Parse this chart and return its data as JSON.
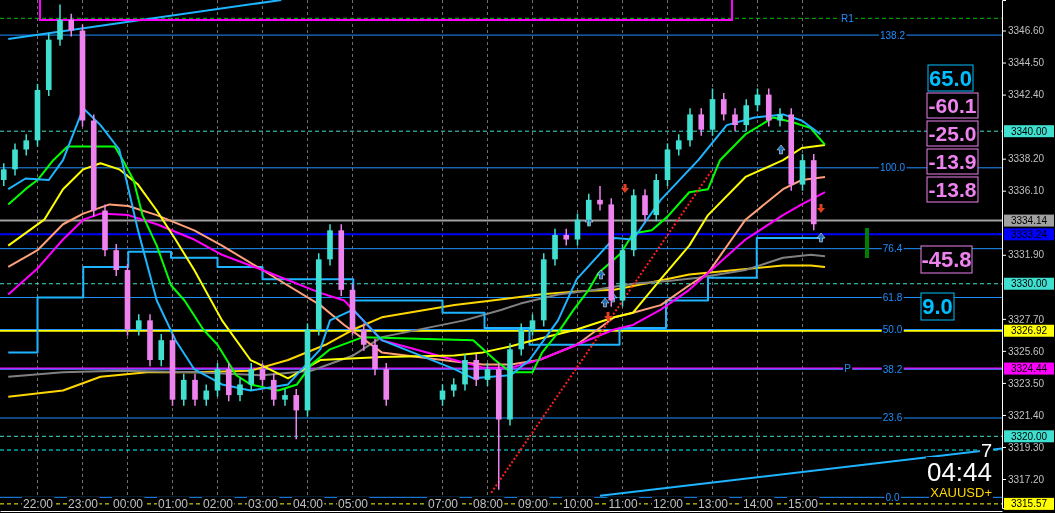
{
  "chart_data": {
    "type": "candlestick",
    "x": [
      "2000-01-01T21:15",
      "2000-01-01T21:30",
      "2000-01-01T21:45",
      "2000-01-01T22:00",
      "2000-01-01T22:15",
      "2000-01-01T22:30",
      "2000-01-01T22:45",
      "2000-01-01T23:00",
      "2000-01-01T23:15",
      "2000-01-01T23:30",
      "2000-01-01T23:45",
      "2000-01-02T00:00",
      "2000-01-02T00:15",
      "2000-01-02T00:30",
      "2000-01-02T00:45",
      "2000-01-02T01:00",
      "2000-01-02T01:15",
      "2000-01-02T01:30",
      "2000-01-02T01:45",
      "2000-01-02T02:00",
      "2000-01-02T02:15",
      "2000-01-02T02:30",
      "2000-01-02T02:45",
      "2000-01-02T03:00",
      "2000-01-02T03:15",
      "2000-01-02T03:30",
      "2000-01-02T03:45",
      "2000-01-02T04:00",
      "2000-01-02T04:15",
      "2000-01-02T04:30",
      "2000-01-02T04:45",
      "2000-01-02T05:00",
      "2000-01-02T05:15",
      "2000-01-02T05:30",
      "2000-01-02T05:45",
      "2000-01-02T07:00",
      "2000-01-02T07:15",
      "2000-01-02T07:30",
      "2000-01-02T07:45",
      "2000-01-02T08:00",
      "2000-01-02T08:15",
      "2000-01-02T08:30",
      "2000-01-02T08:45",
      "2000-01-02T09:00",
      "2000-01-02T09:15",
      "2000-01-02T09:30",
      "2000-01-02T09:45",
      "2000-01-02T10:00",
      "2000-01-02T10:15",
      "2000-01-02T10:30",
      "2000-01-02T10:45",
      "2000-01-02T11:00",
      "2000-01-02T11:15",
      "2000-01-02T11:30",
      "2000-01-02T11:45",
      "2000-01-02T12:00",
      "2000-01-02T12:15",
      "2000-01-02T12:30",
      "2000-01-02T12:45",
      "2000-01-02T13:00",
      "2000-01-02T13:15",
      "2000-01-02T13:30",
      "2000-01-02T13:45",
      "2000-01-02T14:00",
      "2000-01-02T14:15",
      "2000-01-02T14:30",
      "2000-01-02T14:45",
      "2000-01-02T15:00",
      "2000-01-02T15:15"
    ],
    "ohlc": [
      [
        3336.8,
        3337.9,
        3336.4,
        3337.5
      ],
      [
        3337.5,
        3339.2,
        3337.1,
        3338.8
      ],
      [
        3338.8,
        3339.8,
        3338.4,
        3339.4
      ],
      [
        3339.4,
        3343.1,
        3339.0,
        3342.7
      ],
      [
        3342.7,
        3346.4,
        3342.3,
        3346.0
      ],
      [
        3346.0,
        3348.3,
        3345.6,
        3347.3
      ],
      [
        3347.3,
        3347.7,
        3346.2,
        3346.6
      ],
      [
        3346.6,
        3347.0,
        3340.3,
        3340.7
      ],
      [
        3340.7,
        3341.1,
        3334.4,
        3334.8
      ],
      [
        3334.8,
        3335.2,
        3331.8,
        3332.2
      ],
      [
        3332.2,
        3332.6,
        3330.5,
        3330.9
      ],
      [
        3330.9,
        3331.3,
        3326.6,
        3327.0
      ],
      [
        3327.0,
        3328.0,
        3326.6,
        3327.6
      ],
      [
        3327.6,
        3328.0,
        3324.6,
        3325.0
      ],
      [
        3325.0,
        3326.7,
        3324.6,
        3326.3
      ],
      [
        3326.3,
        3326.7,
        3322.0,
        3322.4
      ],
      [
        3322.4,
        3324.1,
        3322.0,
        3323.7
      ],
      [
        3323.7,
        3324.1,
        3322.0,
        3322.4
      ],
      [
        3322.4,
        3323.4,
        3322.0,
        3323.0
      ],
      [
        3323.0,
        3324.8,
        3322.6,
        3324.4
      ],
      [
        3324.4,
        3324.8,
        3322.3,
        3322.7
      ],
      [
        3322.7,
        3323.8,
        3322.3,
        3323.4
      ],
      [
        3323.4,
        3324.8,
        3323.0,
        3324.4
      ],
      [
        3324.4,
        3324.8,
        3323.3,
        3323.7
      ],
      [
        3323.7,
        3324.1,
        3322.0,
        3322.4
      ],
      [
        3322.4,
        3323.1,
        3322.0,
        3322.7
      ],
      [
        3322.7,
        3323.1,
        3319.8,
        3321.7
      ],
      [
        3321.7,
        3327.4,
        3321.3,
        3327.0
      ],
      [
        3327.0,
        3332.0,
        3326.6,
        3331.6
      ],
      [
        3331.6,
        3333.9,
        3331.2,
        3333.5
      ],
      [
        3333.5,
        3333.9,
        3329.2,
        3329.6
      ],
      [
        3329.6,
        3330.0,
        3326.6,
        3327.0
      ],
      [
        3327.0,
        3327.4,
        3325.6,
        3326.0
      ],
      [
        3326.0,
        3326.4,
        3324.0,
        3324.4
      ],
      [
        3324.4,
        3324.8,
        3322.0,
        3322.4
      ],
      [
        3322.4,
        3323.4,
        3322.0,
        3323.0
      ],
      [
        3323.0,
        3323.8,
        3322.6,
        3323.4
      ],
      [
        3323.4,
        3325.4,
        3323.0,
        3325.0
      ],
      [
        3325.0,
        3325.4,
        3323.3,
        3323.7
      ],
      [
        3323.7,
        3324.8,
        3323.3,
        3324.4
      ],
      [
        3324.4,
        3324.8,
        3316.5,
        3321.1
      ],
      [
        3321.1,
        3326.1,
        3320.7,
        3325.7
      ],
      [
        3325.7,
        3327.4,
        3325.3,
        3327.0
      ],
      [
        3327.0,
        3328.0,
        3326.6,
        3327.6
      ],
      [
        3327.6,
        3332.0,
        3327.2,
        3331.6
      ],
      [
        3331.6,
        3333.6,
        3331.2,
        3333.2
      ],
      [
        3333.2,
        3333.6,
        3332.5,
        3332.9
      ],
      [
        3332.9,
        3334.6,
        3332.5,
        3334.2
      ],
      [
        3334.2,
        3335.9,
        3333.8,
        3335.5
      ],
      [
        3335.5,
        3336.4,
        3334.8,
        3335.2
      ],
      [
        3335.2,
        3335.6,
        3328.5,
        3328.9
      ],
      [
        3328.9,
        3332.6,
        3328.5,
        3332.2
      ],
      [
        3332.2,
        3336.2,
        3331.8,
        3335.8
      ],
      [
        3335.8,
        3336.2,
        3334.1,
        3334.5
      ],
      [
        3334.5,
        3337.2,
        3334.1,
        3336.8
      ],
      [
        3336.8,
        3339.2,
        3336.4,
        3338.8
      ],
      [
        3338.8,
        3339.8,
        3338.4,
        3339.4
      ],
      [
        3339.4,
        3341.5,
        3339.0,
        3341.1
      ],
      [
        3341.1,
        3341.5,
        3339.7,
        3340.1
      ],
      [
        3340.1,
        3342.8,
        3339.7,
        3342.1
      ],
      [
        3342.1,
        3342.5,
        3340.7,
        3341.1
      ],
      [
        3341.1,
        3341.5,
        3340.0,
        3340.4
      ],
      [
        3340.4,
        3342.1,
        3340.0,
        3341.7
      ],
      [
        3341.7,
        3342.8,
        3341.3,
        3342.4
      ],
      [
        3342.4,
        3342.8,
        3340.3,
        3340.7
      ],
      [
        3340.7,
        3341.5,
        3340.3,
        3341.1
      ],
      [
        3341.1,
        3341.5,
        3336.1,
        3336.5
      ],
      [
        3336.5,
        3338.5,
        3336.1,
        3338.1
      ],
      [
        3338.1,
        3338.5,
        3333.5,
        3333.9
      ]
    ],
    "series": [
      {
        "type": "line",
        "color": "#ffd700",
        "x": [
          "2000-01-01T21:21",
          "2000-01-01T22:34",
          "2000-01-01T23:24",
          "2000-01-02T00:26",
          "2000-01-02T01:29",
          "2000-01-02T02:44",
          "2000-01-02T03:34",
          "2000-01-02T04:24",
          "2000-01-02T05:01",
          "2000-01-02T05:39",
          "2000-01-02T07:16",
          "2000-01-02T08:06",
          "2000-01-02T09:09",
          "2000-01-02T09:59",
          "2000-01-02T10:49",
          "2000-01-02T11:39",
          "2000-01-02T12:29",
          "2000-01-02T13:31",
          "2000-01-02T14:34",
          "2000-01-02T15:11",
          "2000-01-02T15:30"
        ],
        "values": [
          3322.6,
          3323.0,
          3323.9,
          3324.2,
          3324.2,
          3324.3,
          3325.0,
          3326.0,
          3327.0,
          3327.8,
          3328.6,
          3328.9,
          3329.3,
          3329.5,
          3329.6,
          3330.1,
          3330.6,
          3330.9,
          3331.2,
          3331.2,
          3331.1
        ]
      },
      {
        "type": "line",
        "color": "#808080",
        "x": [
          "2000-01-01T21:21",
          "2000-01-01T22:34",
          "2000-01-01T23:49",
          "2000-01-02T01:29",
          "2000-01-02T03:00",
          "2000-01-02T04:05",
          "2000-01-02T05:01",
          "2000-01-02T05:39",
          "2000-01-02T07:29",
          "2000-01-02T08:19",
          "2000-01-02T08:44",
          "2000-01-02T09:34",
          "2000-01-02T10:24",
          "2000-01-02T11:14",
          "2000-01-02T12:04",
          "2000-01-02T12:41",
          "2000-01-02T13:44",
          "2000-01-02T14:34",
          "2000-01-02T15:11",
          "2000-01-02T15:30"
        ],
        "values": [
          3323.9,
          3324.2,
          3324.3,
          3324.2,
          3324.0,
          3324.3,
          3325.3,
          3326.5,
          3327.6,
          3328.3,
          3328.7,
          3329.3,
          3329.6,
          3330.0,
          3330.2,
          3330.4,
          3330.9,
          3331.7,
          3331.9,
          3331.8
        ]
      },
      {
        "type": "step",
        "color": "#1eb4ff",
        "x": [
          "2000-01-01T21:21",
          "2000-01-01T22:00",
          "2000-01-01T23:01",
          "2000-01-02T00:01",
          "2000-01-02T00:58",
          "2000-01-02T02:00",
          "2000-01-02T03:00",
          "2000-01-02T05:01",
          "2000-01-02T07:00",
          "2000-01-02T07:56",
          "2000-01-02T08:56",
          "2000-01-02T10:56",
          "2000-01-02T11:58",
          "2000-01-02T12:54",
          "2000-01-02T13:59",
          "2000-01-02T15:28"
        ],
        "values": [
          3325.5,
          3329.1,
          3331.1,
          3332.1,
          3331.7,
          3331.1,
          3330.3,
          3328.9,
          3328.1,
          3327.1,
          3326.0,
          3327.1,
          3328.9,
          3330.4,
          3333.0,
          3333.0
        ]
      },
      {
        "type": "line",
        "color": "#ffa07a",
        "x": [
          "2000-01-01T21:21",
          "2000-01-01T22:00",
          "2000-01-01T22:34",
          "2000-01-01T23:01",
          "2000-01-01T23:36",
          "2000-01-02T00:01",
          "2000-01-02T00:39",
          "2000-01-02T01:29",
          "2000-01-02T02:06",
          "2000-01-02T03:00",
          "2000-01-02T04:17",
          "2000-01-02T04:49",
          "2000-01-02T05:39",
          "2000-01-02T07:16",
          "2000-01-02T07:54",
          "2000-01-02T08:31",
          "2000-01-02T09:09",
          "2000-01-02T09:59",
          "2000-01-02T10:49",
          "2000-01-02T11:14",
          "2000-01-02T11:51",
          "2000-01-02T12:29",
          "2000-01-02T12:54",
          "2000-01-02T13:44",
          "2000-01-02T14:34",
          "2000-01-02T14:59",
          "2000-01-02T15:30"
        ],
        "values": [
          3331.1,
          3332.2,
          3333.9,
          3334.6,
          3335.2,
          3335.1,
          3334.5,
          3333.5,
          3332.5,
          3330.9,
          3328.6,
          3327.3,
          3325.5,
          3324.9,
          3324.7,
          3324.7,
          3325.0,
          3326.0,
          3327.8,
          3328.1,
          3328.6,
          3329.9,
          3330.7,
          3334.2,
          3336.2,
          3336.8,
          3337.0
        ]
      },
      {
        "type": "line",
        "color": "#ff00ff",
        "x": [
          "2000-01-01T21:21",
          "2000-01-01T22:00",
          "2000-01-01T22:34",
          "2000-01-01T23:01",
          "2000-01-01T23:24",
          "2000-01-02T00:01",
          "2000-01-02T00:39",
          "2000-01-02T01:29",
          "2000-01-02T02:06",
          "2000-01-02T03:00",
          "2000-01-02T04:17",
          "2000-01-02T04:49",
          "2000-01-02T05:39",
          "2000-01-02T07:16",
          "2000-01-02T07:54",
          "2000-01-02T08:31",
          "2000-01-02T09:09",
          "2000-01-02T09:59",
          "2000-01-02T10:49",
          "2000-01-02T11:14",
          "2000-01-02T11:51",
          "2000-01-02T12:29",
          "2000-01-02T13:44",
          "2000-01-02T14:34",
          "2000-01-02T14:59",
          "2000-01-02T15:30"
        ],
        "values": [
          3329.3,
          3331.0,
          3332.9,
          3334.2,
          3334.6,
          3334.5,
          3333.9,
          3332.9,
          3331.9,
          3330.9,
          3329.4,
          3328.9,
          3326.3,
          3325.0,
          3324.5,
          3324.5,
          3325.0,
          3326.0,
          3327.0,
          3327.3,
          3328.3,
          3329.6,
          3332.9,
          3334.5,
          3335.2,
          3336.0
        ]
      },
      {
        "type": "line",
        "color": "#ffff00",
        "x": [
          "2000-01-01T21:21",
          "2000-01-01T22:09",
          "2000-01-01T22:34",
          "2000-01-01T23:01",
          "2000-01-01T23:24",
          "2000-01-01T23:49",
          "2000-01-02T00:14",
          "2000-01-02T00:39",
          "2000-01-02T01:04",
          "2000-01-02T01:29",
          "2000-01-02T02:06",
          "2000-01-02T02:44",
          "2000-01-02T03:09",
          "2000-01-02T03:34",
          "2000-01-02T04:17",
          "2000-01-02T05:39",
          "2000-01-02T07:16",
          "2000-01-02T07:54",
          "2000-01-02T08:31",
          "2000-01-02T09:09",
          "2000-01-02T09:59",
          "2000-01-02T10:49",
          "2000-01-02T11:14",
          "2000-01-02T11:51",
          "2000-01-02T12:29",
          "2000-01-02T12:54",
          "2000-01-02T13:44",
          "2000-01-02T14:34",
          "2000-01-02T14:59",
          "2000-01-02T15:30"
        ],
        "values": [
          3332.5,
          3334.2,
          3336.2,
          3337.5,
          3337.9,
          3337.5,
          3336.5,
          3334.8,
          3332.9,
          3330.9,
          3327.6,
          3325.0,
          3324.4,
          3323.8,
          3325.0,
          3325.2,
          3325.3,
          3325.5,
          3325.9,
          3326.4,
          3327.0,
          3327.8,
          3328.1,
          3330.3,
          3332.5,
          3334.5,
          3337.0,
          3338.1,
          3338.9,
          3339.1
        ]
      },
      {
        "type": "line",
        "color": "#00ff00",
        "x": [
          "2000-01-01T21:21",
          "2000-01-01T21:44",
          "2000-01-01T22:00",
          "2000-01-01T22:21",
          "2000-01-01T22:40",
          "2000-01-01T23:00",
          "2000-01-01T23:43",
          "2000-01-01T23:55",
          "2000-01-02T00:08",
          "2000-01-02T00:20",
          "2000-01-02T00:39",
          "2000-01-02T00:58",
          "2000-01-02T01:16",
          "2000-01-02T01:41",
          "2000-01-02T02:00",
          "2000-01-02T02:25",
          "2000-01-02T02:44",
          "2000-01-02T03:21",
          "2000-01-02T03:46",
          "2000-01-02T04:05",
          "2000-01-02T04:30",
          "2000-01-02T05:14",
          "2000-01-02T07:41",
          "2000-01-02T08:10",
          "2000-01-02T08:31",
          "2000-01-02T09:00",
          "2000-01-02T09:13",
          "2000-01-02T09:34",
          "2000-01-02T09:55",
          "2000-01-02T10:15",
          "2000-01-02T10:28",
          "2000-01-02T10:58",
          "2000-01-02T11:14",
          "2000-01-02T11:39",
          "2000-01-02T12:00",
          "2000-01-02T12:29",
          "2000-01-02T12:54",
          "2000-01-02T13:10",
          "2000-01-02T13:44",
          "2000-01-02T14:21",
          "2000-01-02T14:46",
          "2000-01-02T15:11",
          "2000-01-02T15:30"
        ],
        "values": [
          3335.2,
          3336.2,
          3336.8,
          3338.1,
          3339.0,
          3339.0,
          3339.0,
          3338.0,
          3336.8,
          3334.5,
          3332.5,
          3329.9,
          3328.9,
          3327.0,
          3326.0,
          3324.0,
          3323.4,
          3323.0,
          3323.4,
          3324.7,
          3325.7,
          3326.5,
          3326.3,
          3325.0,
          3324.2,
          3324.2,
          3325.5,
          3326.8,
          3328.3,
          3329.6,
          3330.7,
          3332.0,
          3333.3,
          3333.5,
          3334.4,
          3336.0,
          3336.2,
          3338.1,
          3339.8,
          3340.9,
          3340.6,
          3340.2,
          3339.1
        ]
      },
      {
        "type": "line",
        "color": "#1eb4ff",
        "x": [
          "2000-01-01T21:21",
          "2000-01-01T21:44",
          "2000-01-01T22:15",
          "2000-01-01T22:34",
          "2000-01-01T23:01",
          "2000-01-01T23:24",
          "2000-01-01T23:49",
          "2000-01-02T00:14",
          "2000-01-02T00:39",
          "2000-01-02T01:04",
          "2000-01-02T01:29",
          "2000-01-02T02:06",
          "2000-01-02T02:44",
          "2000-01-02T03:34",
          "2000-01-02T04:17",
          "2000-01-02T04:30",
          "2000-01-02T05:01",
          "2000-01-02T05:39",
          "2000-01-02T07:16",
          "2000-01-02T07:41",
          "2000-01-02T08:31",
          "2000-01-02T08:56",
          "2000-01-02T09:34",
          "2000-01-02T09:59",
          "2000-01-02T10:49",
          "2000-01-02T11:14",
          "2000-01-02T11:51",
          "2000-01-02T12:41",
          "2000-01-02T13:19",
          "2000-01-02T13:56",
          "2000-01-02T14:34",
          "2000-01-02T14:59",
          "2000-01-02T15:24"
        ],
        "values": [
          3336.2,
          3336.9,
          3336.8,
          3338.1,
          3341.5,
          3340.4,
          3338.8,
          3333.5,
          3328.9,
          3326.3,
          3324.4,
          3323.4,
          3323.0,
          3323.4,
          3325.7,
          3327.6,
          3328.3,
          3326.3,
          3324.4,
          3323.8,
          3324.0,
          3325.0,
          3327.6,
          3330.3,
          3333.0,
          3332.9,
          3335.5,
          3338.1,
          3340.4,
          3340.9,
          3341.1,
          3340.7,
          3339.8
        ]
      },
      {
        "type": "line",
        "color": "#ff2020",
        "line_style": "dotted",
        "x": [
          "2000-01-02T08:05",
          "2000-01-02T13:00"
        ],
        "values": [
          3316.3,
          3337.5
        ]
      },
      {
        "type": "line",
        "color": "#1eb4ff",
        "x": [
          "2000-01-01T21:21",
          "2000-01-02T03:25"
        ],
        "values": [
          3346.05,
          3348.6
        ]
      },
      {
        "type": "line",
        "color": "#1eb4ff",
        "x": [
          "2000-01-02T10:30",
          "2000-01-02T19:26"
        ],
        "values": [
          3316.1,
          3319.2
        ]
      }
    ],
    "xlim": [
      "2000-01-01T21:10",
      "2000-01-02T19:26"
    ],
    "ylim": [
      3315.3,
      3348.6
    ],
    "xticks": [
      {
        "value": "2000-01-01T22:00",
        "label": "22:00"
      },
      {
        "value": "2000-01-01T23:00",
        "label": "23:00"
      },
      {
        "value": "2000-01-02T00:00",
        "label": "00:00"
      },
      {
        "value": "2000-01-02T01:00",
        "label": "01:00"
      },
      {
        "value": "2000-01-02T02:00",
        "label": "02:00"
      },
      {
        "value": "2000-01-02T03:00",
        "label": "03:00"
      },
      {
        "value": "2000-01-02T04:00",
        "label": "04:00"
      },
      {
        "value": "2000-01-02T05:00",
        "label": "05:00"
      },
      {
        "value": "2000-01-02T07:00",
        "label": "07:00"
      },
      {
        "value": "2000-01-02T08:00",
        "label": "08:00"
      },
      {
        "value": "2000-01-02T09:00",
        "label": "09:00"
      },
      {
        "value": "2000-01-02T10:00",
        "label": "10:00"
      },
      {
        "value": "2000-01-02T11:00",
        "label": "11:00"
      },
      {
        "value": "2000-01-02T12:00",
        "label": "12:00"
      },
      {
        "value": "2000-01-02T13:00",
        "label": "13:00"
      },
      {
        "value": "2000-01-02T14:00",
        "label": "14:00"
      },
      {
        "value": "2000-01-02T15:00",
        "label": "15:00"
      }
    ],
    "yticks": [
      {
        "value": 3346.6,
        "label": "3346.60"
      },
      {
        "value": 3344.5,
        "label": "3344.50"
      },
      {
        "value": 3342.4,
        "label": "3342.40"
      },
      {
        "value": 3338.2,
        "label": "3338.20"
      },
      {
        "value": 3336.1,
        "label": "3336.10"
      },
      {
        "value": 3331.9,
        "label": "3331.90"
      },
      {
        "value": 3327.7,
        "label": "3327.70"
      },
      {
        "value": 3325.6,
        "label": "3325.60"
      },
      {
        "value": 3323.5,
        "label": "3323.50"
      },
      {
        "value": 3321.4,
        "label": "3321.40"
      },
      {
        "value": 3319.3,
        "label": "3319.30"
      },
      {
        "value": 3317.2,
        "label": "3317.20"
      }
    ],
    "grid": "x",
    "ref_lines": [
      {
        "axis": "y",
        "value": 3347.4,
        "color": "#00c000",
        "line_style": "dashed"
      },
      {
        "axis": "y",
        "value": 3340.0,
        "label": "3340.00",
        "color": "#40e0d0",
        "line_style": "dashed"
      },
      {
        "axis": "y",
        "value": 3334.14,
        "label": "3334.14",
        "color": "#a0a0a0",
        "line_style": "solid"
      },
      {
        "axis": "y",
        "value": 3333.24,
        "label": "3333.24",
        "color": "#0000ff",
        "line_style": "solid"
      },
      {
        "axis": "y",
        "value": 3330.0,
        "label": "3330.00",
        "color": "#40e0d0",
        "line_style": "dashed"
      },
      {
        "axis": "y",
        "value": 3326.92,
        "label": "3326.92",
        "color": "#ffff00",
        "line_style": "solid"
      },
      {
        "axis": "y",
        "value": 3324.44,
        "label": "3324.44",
        "color": "#ff00ff",
        "line_style": "solid"
      },
      {
        "axis": "y",
        "value": 3320.0,
        "label": "3320.00",
        "color": "#40e0d0",
        "line_style": "dashed"
      },
      {
        "axis": "y",
        "value": 3319.1,
        "color": "#00ffff",
        "line_style": "dashed"
      },
      {
        "axis": "y",
        "value": 3315.57,
        "label": "3315.57",
        "color": "#ffff00",
        "line_style": "dashed"
      },
      {
        "axis": "y",
        "value": 3346.3,
        "color": "#1e90ff",
        "line_style": "solid"
      },
      {
        "axis": "y",
        "value": 3337.6,
        "color": "#1e90ff",
        "line_style": "solid"
      },
      {
        "axis": "y",
        "value": 3332.3,
        "color": "#1e90ff",
        "line_style": "solid"
      },
      {
        "axis": "y",
        "value": 3329.1,
        "color": "#1e90ff",
        "line_style": "solid"
      },
      {
        "axis": "y",
        "value": 3327.0,
        "color": "#1e90ff",
        "line_style": "solid"
      },
      {
        "axis": "y",
        "value": 3324.4,
        "color": "#1e90ff",
        "line_style": "solid"
      },
      {
        "axis": "y",
        "value": 3321.2,
        "color": "#1e90ff",
        "line_style": "solid"
      },
      {
        "axis": "y",
        "value": 3316.0,
        "color": "#1e90ff",
        "line_style": "solid"
      }
    ],
    "annotations": [
      {
        "text": "138.2",
        "x": "2000-01-02T17:00",
        "y": 3346.3
      },
      {
        "text": "100.0",
        "x": "2000-01-02T17:00",
        "y": 3337.6
      },
      {
        "text": "76.4",
        "x": "2000-01-02T17:00",
        "y": 3332.3
      },
      {
        "text": "61.8",
        "x": "2000-01-02T17:00",
        "y": 3329.1
      },
      {
        "text": "50.0",
        "x": "2000-01-02T17:00",
        "y": 3327.0
      },
      {
        "text": "38.2",
        "x": "2000-01-02T17:00",
        "y": 3324.4
      },
      {
        "text": "23.6",
        "x": "2000-01-02T17:00",
        "y": 3321.2
      },
      {
        "text": "0.0",
        "x": "2000-01-02T17:00",
        "y": 3316.0
      },
      {
        "text": "R1",
        "x": "2000-01-02T16:00",
        "y": 3347.4
      },
      {
        "text": "P",
        "x": "2000-01-02T16:00",
        "y": 3324.44
      },
      "65.0",
      "-60.1",
      "-25.0",
      "-13.9",
      "-13.8",
      "-45.8",
      "9.0",
      "7",
      "04:44",
      "XAUUSD+"
    ]
  }
}
